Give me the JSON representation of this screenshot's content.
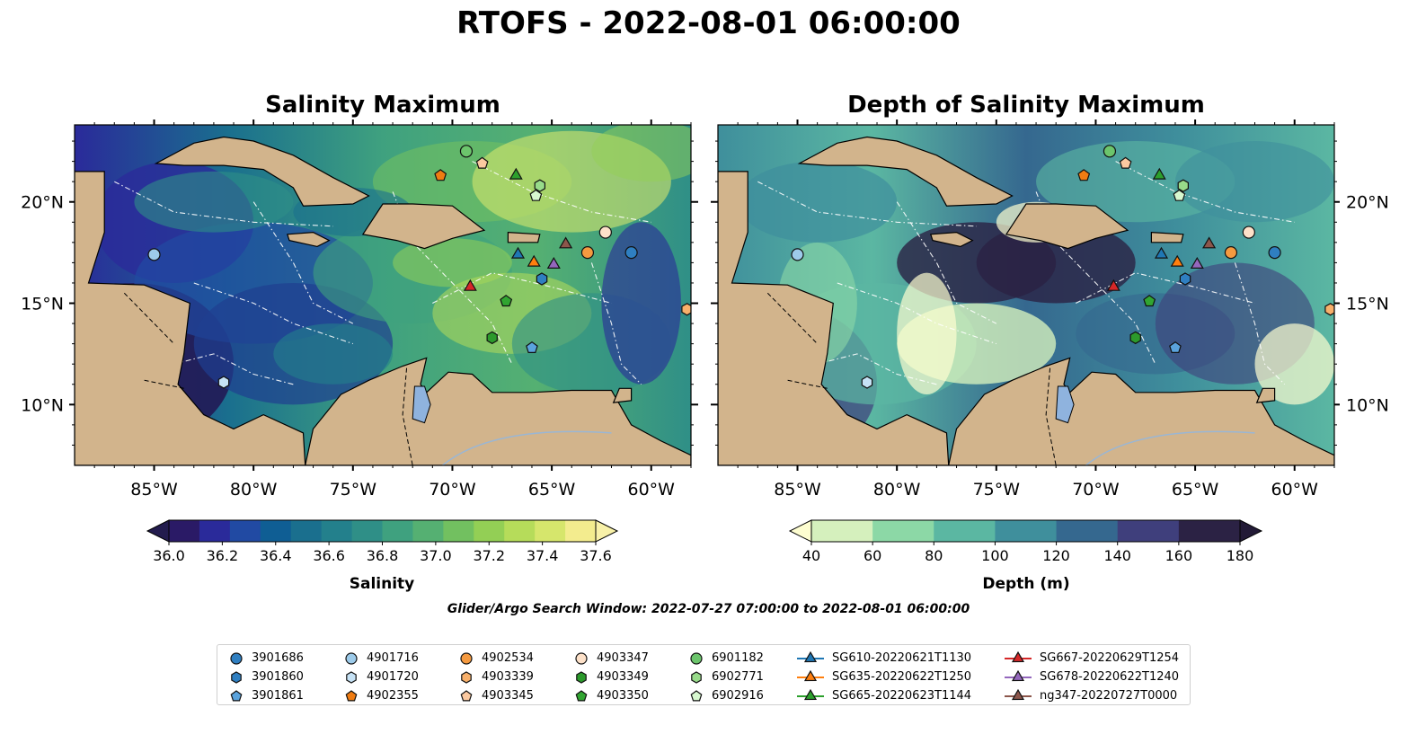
{
  "title": "RTOFS - 2022-08-01 06:00:00",
  "panels": [
    {
      "title": "Salinity Maximum",
      "x_ticks": [
        "85°W",
        "80°W",
        "75°W",
        "70°W",
        "65°W",
        "60°W"
      ],
      "y_ticks": [
        "20°N",
        "15°N",
        "10°N"
      ],
      "colorbar": {
        "label": "Salinity",
        "ticks": [
          "36.0",
          "36.2",
          "36.4",
          "36.6",
          "36.8",
          "37.0",
          "37.2",
          "37.4",
          "37.6"
        ],
        "colors": [
          "#2a1a66",
          "#2a2a9a",
          "#214aa3",
          "#0f5e94",
          "#1a6f8e",
          "#23808c",
          "#2f8f87",
          "#3fa17f",
          "#55b072",
          "#72c060",
          "#93cf55",
          "#b6dc5a",
          "#d6e66c",
          "#f3ec8e"
        ],
        "extend_low": "#231c4e",
        "extend_high": "#f8f1a8"
      }
    },
    {
      "title": "Depth of Salinity Maximum",
      "x_ticks": [
        "85°W",
        "80°W",
        "75°W",
        "70°W",
        "65°W",
        "60°W"
      ],
      "y_ticks": [
        "20°N",
        "15°N",
        "10°N"
      ],
      "colorbar": {
        "label": "Depth (m)",
        "ticks": [
          "40",
          "60",
          "80",
          "100",
          "120",
          "140",
          "160",
          "180"
        ],
        "colors": [
          "#d5f0bd",
          "#8cd8a6",
          "#5bb7a2",
          "#3f8f9c",
          "#35688f",
          "#3f3f7c",
          "#2b2244"
        ],
        "extend_low": "#fdfdd0",
        "extend_high": "#221a36"
      }
    }
  ],
  "search_window": "Glider/Argo Search Window: 2022-07-27 07:00:00 to 2022-08-01 06:00:00",
  "legend": [
    {
      "label": "3901686",
      "marker": "circle",
      "color": "#2f7fc1"
    },
    {
      "label": "3901860",
      "marker": "hexagon",
      "color": "#2f7fc1"
    },
    {
      "label": "3901861",
      "marker": "pentagon",
      "color": "#5aa3dd"
    },
    {
      "label": "4901716",
      "marker": "circle",
      "color": "#9dcbea"
    },
    {
      "label": "4901720",
      "marker": "hexagon",
      "color": "#c6e2f5"
    },
    {
      "label": "4902355",
      "marker": "pentagon",
      "color": "#f07c12"
    },
    {
      "label": "4902534",
      "marker": "circle",
      "color": "#f59a40"
    },
    {
      "label": "4903339",
      "marker": "hexagon",
      "color": "#f8b06b"
    },
    {
      "label": "4903345",
      "marker": "pentagon",
      "color": "#fbc9a0"
    },
    {
      "label": "4903347",
      "marker": "circle",
      "color": "#fde1c9"
    },
    {
      "label": "4903349",
      "marker": "hexagon",
      "color": "#2c9a2c"
    },
    {
      "label": "4903350",
      "marker": "pentagon",
      "color": "#31a531"
    },
    {
      "label": "6901182",
      "marker": "circle",
      "color": "#6cc56c"
    },
    {
      "label": "6902771",
      "marker": "hexagon",
      "color": "#98db8a"
    },
    {
      "label": "6902916",
      "marker": "pentagon",
      "color": "#d7f8cf"
    },
    {
      "label": "SG610-20220621T1130",
      "marker": "triangle",
      "color": "#1f77b4"
    },
    {
      "label": "SG635-20220622T1250",
      "marker": "triangle",
      "color": "#ff7f0e"
    },
    {
      "label": "SG665-20220623T1144",
      "marker": "triangle",
      "color": "#2ca02c"
    },
    {
      "label": "SG667-20220629T1254",
      "marker": "triangle",
      "color": "#d62728"
    },
    {
      "label": "SG678-20220622T1240",
      "marker": "triangle",
      "color": "#9467bd"
    },
    {
      "label": "ng347-20220727T0000",
      "marker": "triangle",
      "color": "#8c564b"
    }
  ],
  "observations": [
    {
      "id": "3901686",
      "lon": -61.0,
      "lat": 17.5
    },
    {
      "id": "3901860",
      "lon": -65.5,
      "lat": 16.2
    },
    {
      "id": "3901861",
      "lon": -66.0,
      "lat": 12.8
    },
    {
      "id": "4901716",
      "lon": -85.0,
      "lat": 17.4
    },
    {
      "id": "4901720",
      "lon": -81.5,
      "lat": 11.1
    },
    {
      "id": "4902355",
      "lon": -70.6,
      "lat": 21.3
    },
    {
      "id": "4902534",
      "lon": -63.2,
      "lat": 17.5
    },
    {
      "id": "4903339",
      "lon": -58.2,
      "lat": 14.7
    },
    {
      "id": "4903345",
      "lon": -68.5,
      "lat": 21.9
    },
    {
      "id": "4903347",
      "lon": -62.3,
      "lat": 18.5
    },
    {
      "id": "4903349",
      "lon": -68.0,
      "lat": 13.3
    },
    {
      "id": "4903350",
      "lon": -67.3,
      "lat": 15.1
    },
    {
      "id": "6901182",
      "lon": -69.3,
      "lat": 22.5
    },
    {
      "id": "6902771",
      "lon": -65.6,
      "lat": 20.8
    },
    {
      "id": "6902916",
      "lon": -65.8,
      "lat": 20.3
    },
    {
      "id": "SG610-20220621T1130",
      "lon": -66.7,
      "lat": 17.4
    },
    {
      "id": "SG635-20220622T1250",
      "lon": -65.9,
      "lat": 17.0
    },
    {
      "id": "SG665-20220623T1144",
      "lon": -66.8,
      "lat": 21.3
    },
    {
      "id": "SG667-20220629T1254",
      "lon": -69.1,
      "lat": 15.8
    },
    {
      "id": "SG678-20220622T1240",
      "lon": -64.9,
      "lat": 16.9
    },
    {
      "id": "ng347-20220727T0000",
      "lon": -64.3,
      "lat": 17.9
    }
  ],
  "style": {
    "land_color": "#d2b48c",
    "lake_color": "#8fb3de",
    "river_color": "#9ab6d4"
  }
}
